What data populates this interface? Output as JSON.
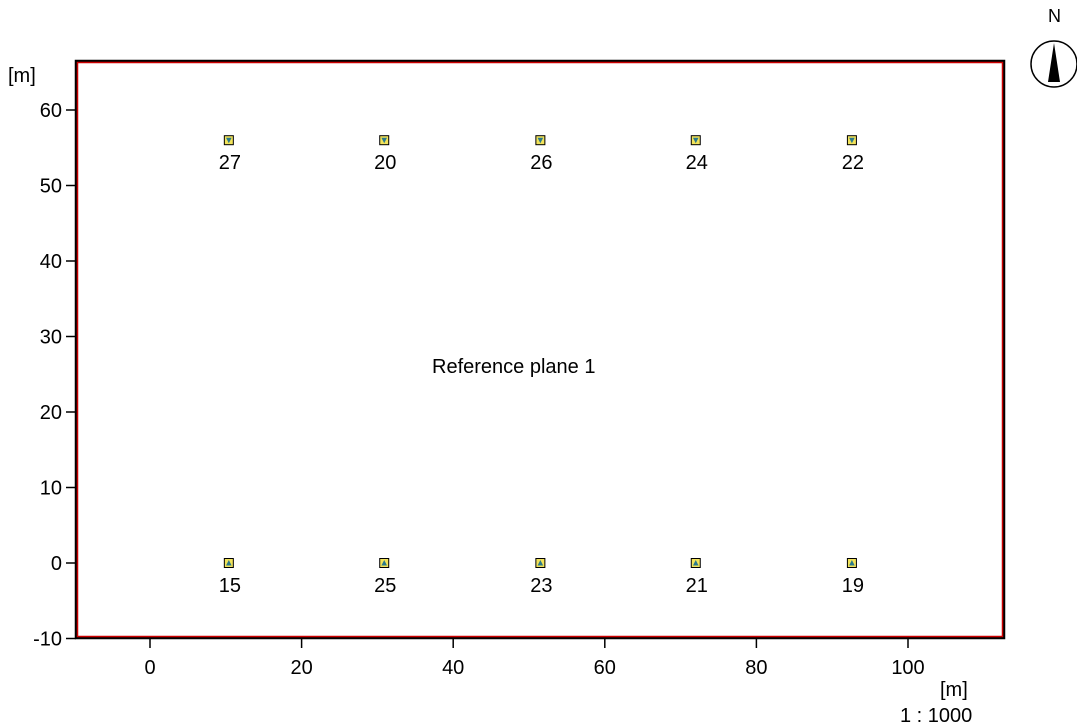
{
  "plan": {
    "reference_plane_label": "Reference plane 1",
    "x_unit": "[m]",
    "y_unit": "[m]",
    "scale": "1 : 1000",
    "north_label": "N",
    "x_ticks": [
      0,
      20,
      40,
      60,
      80,
      100
    ],
    "y_ticks": [
      -10,
      0,
      10,
      20,
      30,
      40,
      50,
      60
    ],
    "x_range": [
      -10,
      113
    ],
    "y_range": [
      -10,
      66.5
    ],
    "frame_color": "#cc0000",
    "colors": {
      "marker_fill": "#f2e35a",
      "marker_arrow": "#2a7a8c"
    },
    "points": [
      {
        "id": "27",
        "x": 10.4,
        "y": 56,
        "direction": "down"
      },
      {
        "id": "20",
        "x": 30.9,
        "y": 56,
        "direction": "down"
      },
      {
        "id": "26",
        "x": 51.5,
        "y": 56,
        "direction": "down"
      },
      {
        "id": "24",
        "x": 72.0,
        "y": 56,
        "direction": "down"
      },
      {
        "id": "22",
        "x": 92.6,
        "y": 56,
        "direction": "down"
      },
      {
        "id": "15",
        "x": 10.4,
        "y": 0,
        "direction": "up"
      },
      {
        "id": "25",
        "x": 30.9,
        "y": 0,
        "direction": "up"
      },
      {
        "id": "23",
        "x": 51.5,
        "y": 0,
        "direction": "up"
      },
      {
        "id": "21",
        "x": 72.0,
        "y": 0,
        "direction": "up"
      },
      {
        "id": "19",
        "x": 92.6,
        "y": 0,
        "direction": "up"
      }
    ]
  }
}
